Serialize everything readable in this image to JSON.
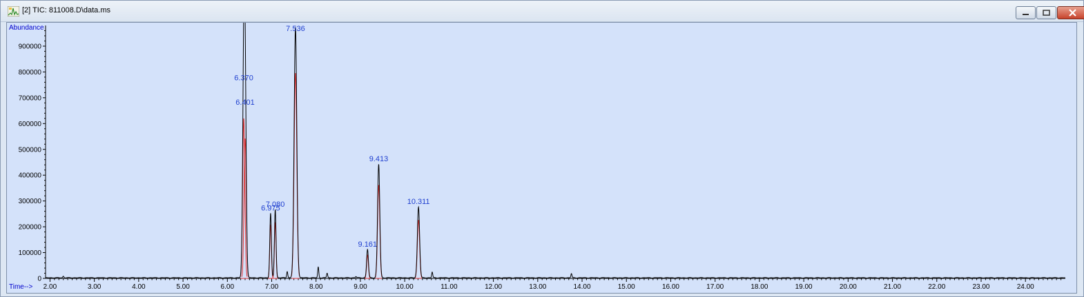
{
  "window": {
    "title": "[2] TIC: 811008.D\\data.ms",
    "controls": [
      "minimize",
      "restore",
      "close"
    ]
  },
  "chart_data": {
    "type": "line",
    "ylabel": "Abundance",
    "xlabel": "Time-->",
    "xlim": [
      1.9,
      24.9
    ],
    "ylim": [
      0,
      980000
    ],
    "x_ticks": [
      2.0,
      3.0,
      4.0,
      5.0,
      6.0,
      7.0,
      8.0,
      9.0,
      10.0,
      11.0,
      12.0,
      13.0,
      14.0,
      15.0,
      16.0,
      17.0,
      18.0,
      19.0,
      20.0,
      21.0,
      22.0,
      23.0,
      24.0
    ],
    "x_tick_labels": [
      "2.00",
      "3.00",
      "4.00",
      "5.00",
      "6.00",
      "7.00",
      "8.00",
      "9.00",
      "10.00",
      "11.00",
      "12.00",
      "13.00",
      "14.00",
      "15.00",
      "16.00",
      "17.00",
      "18.00",
      "19.00",
      "20.00",
      "21.00",
      "22.00",
      "23.00",
      "24.00"
    ],
    "y_ticks": [
      0,
      100000,
      200000,
      300000,
      400000,
      500000,
      600000,
      700000,
      800000,
      900000
    ],
    "y_tick_labels": [
      "0",
      "100000",
      "200000",
      "300000",
      "400000",
      "500000",
      "600000",
      "700000",
      "800000",
      "900000"
    ],
    "peaks": [
      {
        "rt": 6.37,
        "label": "6.370",
        "height": 755000,
        "width": 0.025,
        "integrated": true
      },
      {
        "rt": 6.401,
        "label": "6.401",
        "height": 660000,
        "width": 0.025,
        "integrated": true
      },
      {
        "rt": 6.975,
        "label": "6.975",
        "height": 250000,
        "width": 0.018,
        "integrated": true
      },
      {
        "rt": 7.08,
        "label": "7.080",
        "height": 265000,
        "width": 0.018,
        "integrated": true
      },
      {
        "rt": 7.536,
        "label": "7.536",
        "height": 970000,
        "width": 0.03,
        "integrated": true
      },
      {
        "rt": 9.161,
        "label": "9.161",
        "height": 110000,
        "width": 0.02,
        "integrated": true
      },
      {
        "rt": 9.413,
        "label": "9.413",
        "height": 440000,
        "width": 0.025,
        "integrated": true
      },
      {
        "rt": 10.311,
        "label": "10.311",
        "height": 275000,
        "width": 0.025,
        "integrated": true
      }
    ],
    "minor_peaks": [
      {
        "rt": 2.3,
        "height": 6000
      },
      {
        "rt": 7.35,
        "height": 25000
      },
      {
        "rt": 8.05,
        "height": 42000
      },
      {
        "rt": 8.25,
        "height": 18000
      },
      {
        "rt": 8.9,
        "height": 5000
      },
      {
        "rt": 10.62,
        "height": 22000
      },
      {
        "rt": 13.76,
        "height": 16000
      }
    ],
    "trace_color": "#000000",
    "integration_color": "#e03030",
    "label_color": "#1f3fcf",
    "background_color": "#d4e2fa",
    "grid": false,
    "legend": "none"
  }
}
